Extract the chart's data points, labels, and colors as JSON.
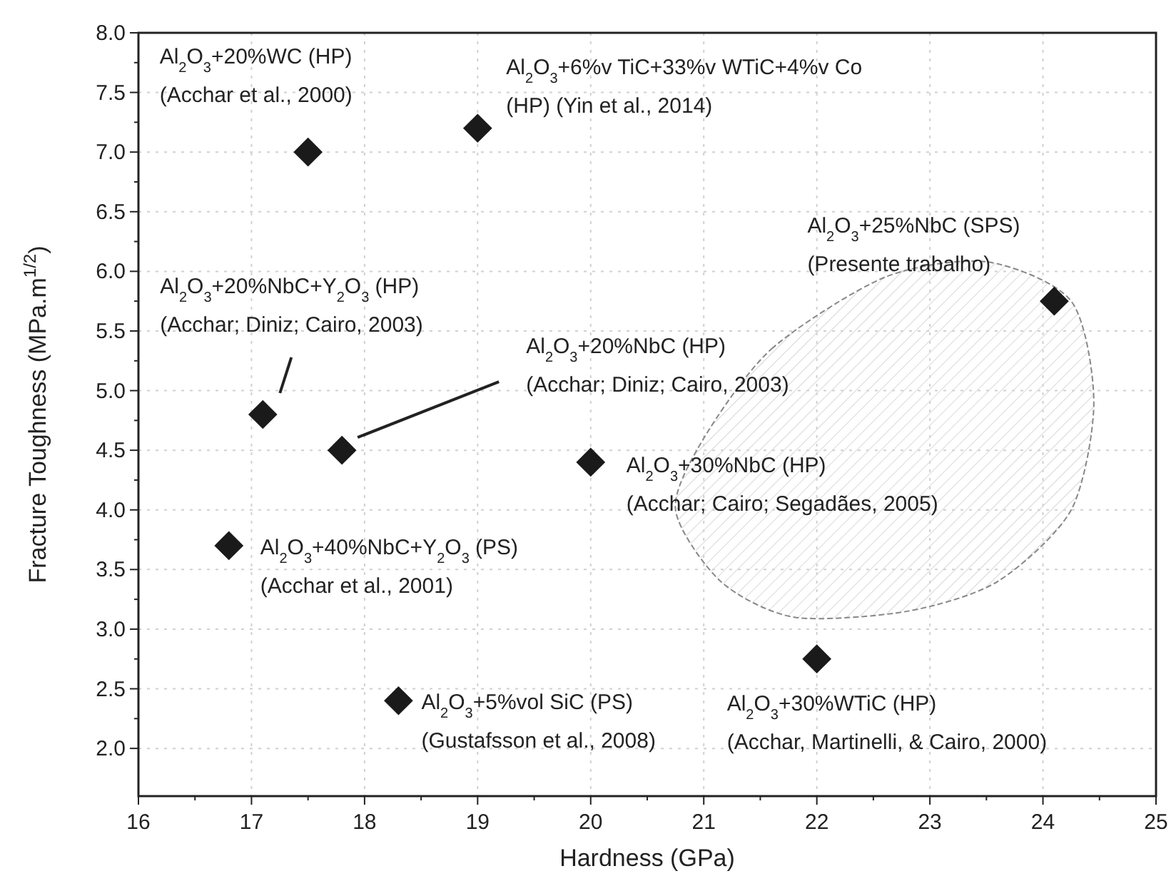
{
  "chart_data": {
    "type": "scatter",
    "xlabel": "Hardness (GPa)",
    "ylabel": "Fracture Toughness (MPa.m$^{1/2}$)",
    "x": [
      17.5,
      19.0,
      17.1,
      17.8,
      20.0,
      16.8,
      18.3,
      22.0,
      24.1
    ],
    "series": [
      {
        "color": "#1a1a1a",
        "values": [
          7.0,
          7.2,
          4.8,
          4.5,
          4.4,
          3.7,
          2.4,
          2.75,
          5.75
        ]
      }
    ],
    "xlim": [
      16,
      25
    ],
    "xticks": [
      16,
      17,
      18,
      19,
      20,
      21,
      22,
      23,
      24,
      25
    ],
    "ylim": [
      1.6,
      8.0
    ],
    "yticks": [
      {
        "value": 2,
        "label": "2.0"
      },
      2.5,
      {
        "value": 3,
        "label": "3.0"
      },
      3.5,
      {
        "value": 4,
        "label": "4.0"
      },
      4.5,
      {
        "value": 5,
        "label": "5.0"
      },
      5.5,
      {
        "value": 6,
        "label": "6.0"
      },
      6.5,
      {
        "value": 7,
        "label": "7.0"
      },
      7.5,
      {
        "value": 8,
        "label": "8.0"
      }
    ],
    "grid": true,
    "marker": "diamond",
    "annotations": [
      {
        "text": "Al$_{2}$O$_{3}$+20%WC (HP)\n(Acchar et al., 2000)",
        "x": 17.5,
        "y": 7.0
      },
      {
        "text": "Al$_{2}$O$_{3}$+6%v TiC+33%v WTiC+4%v Co\n(HP) (Yin et al., 2014)",
        "x": 19.0,
        "y": 7.2
      },
      "Al$_{2}$O$_{3}$+20%NbC+Y$_{2}$O$_{3}$ (HP)\n(Acchar; Diniz; Cairo, 2003)",
      "Al$_{2}$O$_{3}$+20%NbC (HP)\n(Acchar; Diniz; Cairo, 2003)",
      {
        "text": "Al$_{2}$O$_{3}$+30%NbC (HP)\n(Acchar; Cairo; Segadães, 2005)",
        "x": 20.0,
        "y": 4.4
      },
      "Al$_{2}$O$_{3}$+40%NbC+Y$_{2}$O$_{3}$ (PS)\n(Acchar et al., 2001)",
      {
        "text": "Al$_{2}$O$_{3}$+5%vol SiC (PS)\n(Gustafsson et al., 2008)",
        "x": 18.3,
        "y": 2.4
      },
      {
        "text": "Al$_{2}$O$_{3}$+30%WTiC (HP)\n(Acchar, Martinelli, & Cairo, 2000)",
        "x": 22.0,
        "y": 2.75
      },
      {
        "text": "Al$_{2}$O$_{3}$+25%NbC (SPS)\n(Presente trabalho)",
        "x": 24.1,
        "y": 5.75
      }
    ]
  }
}
